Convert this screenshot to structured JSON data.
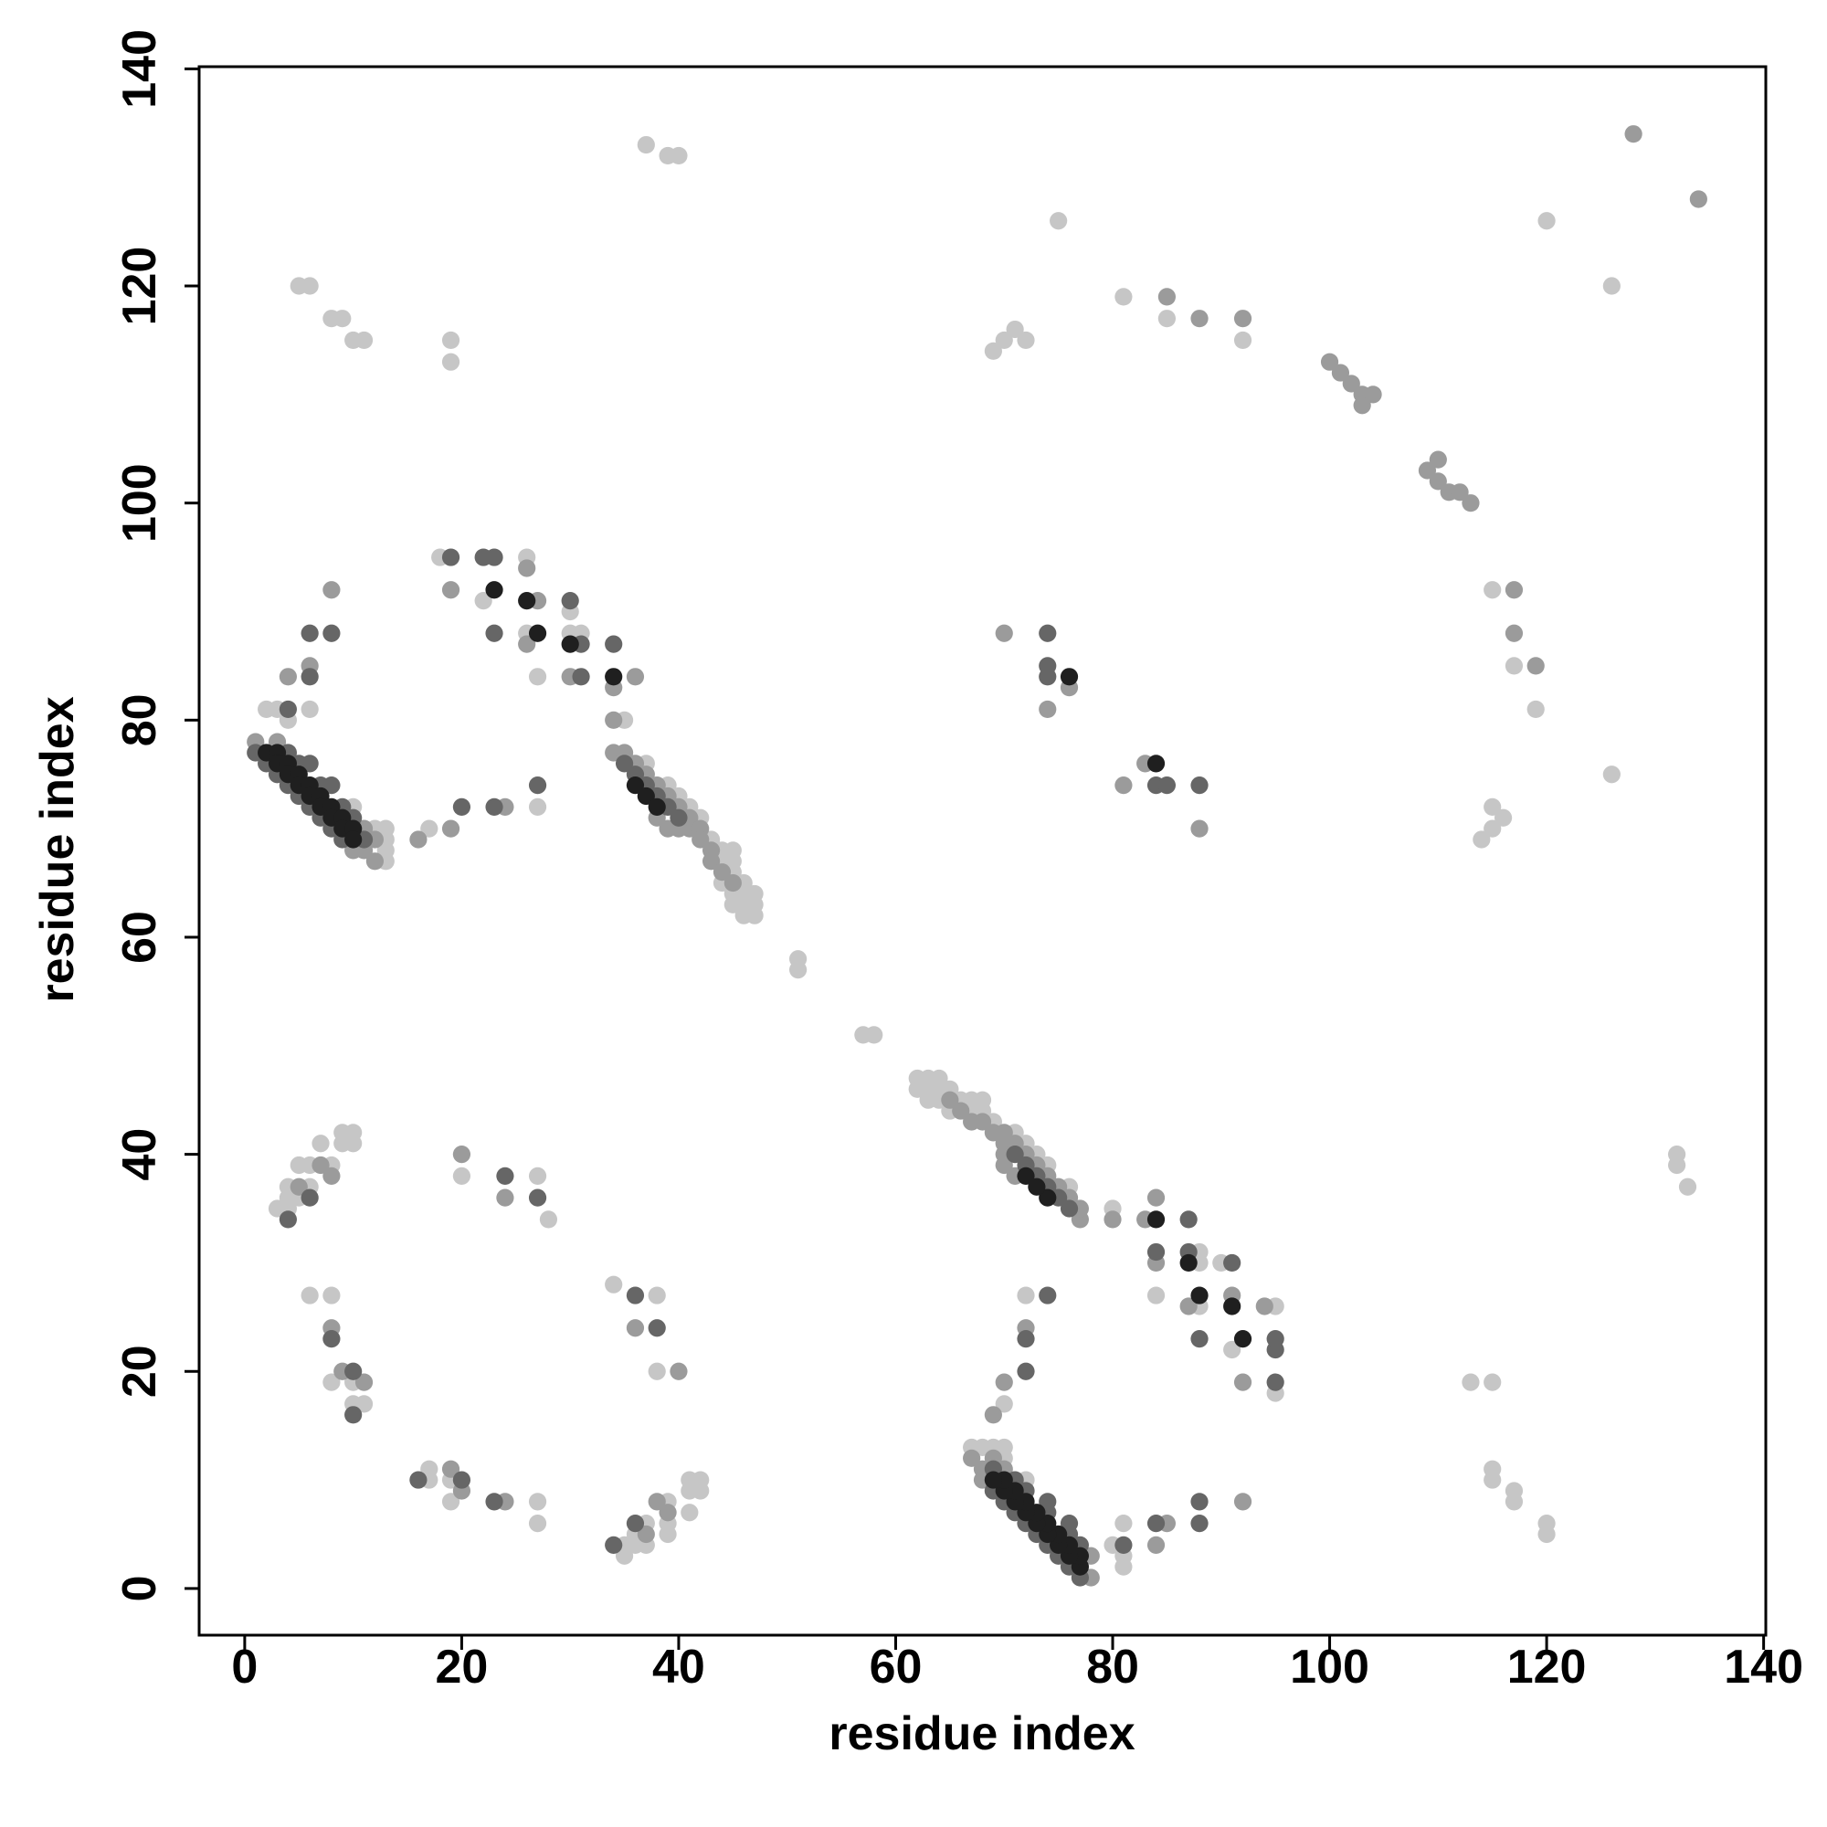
{
  "chart_data": {
    "type": "scatter",
    "xlabel": "residue index",
    "ylabel": "residue index",
    "xlim": [
      -4.2,
      140.2
    ],
    "ylim": [
      -4.3,
      140.2
    ],
    "xticks": [
      0,
      20,
      40,
      60,
      80,
      100,
      120,
      140
    ],
    "yticks": [
      0,
      20,
      40,
      60,
      80,
      100,
      120,
      140
    ],
    "series": [
      {
        "color": "#c6c6c6",
        "x": [
          2,
          3,
          4,
          6,
          18,
          22,
          26,
          26,
          27,
          27,
          30,
          30,
          31,
          35,
          17,
          19,
          19,
          5,
          6,
          8,
          9,
          10,
          11,
          37,
          39,
          40,
          69,
          70,
          71,
          72,
          75,
          81,
          85,
          92,
          120,
          51,
          51,
          44,
          44,
          45,
          45,
          45,
          45,
          45,
          46,
          46,
          46,
          46,
          47,
          47,
          47,
          42,
          43,
          44,
          39,
          40,
          41,
          37,
          12,
          13,
          13,
          13,
          13,
          10,
          3,
          4,
          4,
          4,
          5,
          5,
          6,
          6,
          7,
          8,
          9,
          9,
          10,
          10,
          20,
          27,
          28,
          6,
          8,
          8,
          10,
          10,
          11,
          81,
          81,
          80,
          81,
          95,
          91,
          95,
          88,
          84,
          72,
          90,
          88,
          88,
          80,
          70,
          115,
          113,
          120,
          120,
          117,
          117,
          115,
          115,
          133,
          132,
          132,
          114,
          115,
          116,
          115,
          126,
          119,
          117,
          115,
          126,
          58,
          57,
          68,
          67,
          68,
          67,
          66,
          64,
          63,
          65,
          64,
          63,
          62,
          64,
          63,
          62,
          71,
          69,
          65,
          74,
          73,
          72,
          76,
          70,
          70,
          69,
          68,
          67,
          72,
          35,
          37,
          36,
          35,
          39,
          36,
          39,
          37,
          41,
          39,
          42,
          41,
          42,
          41,
          38,
          38,
          34,
          27,
          27,
          19,
          19,
          17,
          17
        ],
        "values": [
          81,
          81,
          80,
          81,
          95,
          91,
          95,
          88,
          84,
          72,
          90,
          88,
          88,
          80,
          70,
          115,
          113,
          120,
          120,
          117,
          117,
          115,
          115,
          133,
          132,
          132,
          114,
          115,
          116,
          115,
          126,
          119,
          117,
          115,
          126,
          58,
          57,
          68,
          67,
          68,
          67,
          66,
          64,
          63,
          65,
          64,
          63,
          62,
          64,
          63,
          62,
          71,
          69,
          65,
          74,
          73,
          72,
          76,
          70,
          70,
          69,
          68,
          67,
          72,
          35,
          37,
          36,
          35,
          39,
          36,
          39,
          37,
          41,
          39,
          42,
          41,
          42,
          41,
          38,
          38,
          34,
          27,
          27,
          19,
          19,
          17,
          17,
          2,
          3,
          4,
          6,
          18,
          22,
          26,
          26,
          27,
          27,
          30,
          30,
          31,
          35,
          17,
          19,
          19,
          5,
          6,
          8,
          9,
          10,
          11,
          37,
          39,
          40,
          69,
          70,
          71,
          72,
          75,
          81,
          85,
          92,
          120,
          51,
          51,
          44,
          44,
          45,
          45,
          45,
          45,
          45,
          46,
          46,
          46,
          46,
          47,
          47,
          47,
          42,
          43,
          44,
          39,
          40,
          41,
          37,
          12,
          13,
          13,
          13,
          13,
          10,
          3,
          4,
          4,
          4,
          5,
          5,
          6,
          6,
          7,
          8,
          9,
          9,
          10,
          10,
          20,
          27,
          28,
          6,
          8,
          8,
          10,
          10,
          11
        ]
      },
      {
        "color": "#9b9b9b",
        "x": [
          1,
          3,
          11,
          12,
          11,
          10,
          12,
          34,
          35,
          36,
          37,
          38,
          39,
          40,
          41,
          41,
          42,
          42,
          43,
          43,
          44,
          45,
          40,
          38,
          39,
          4,
          6,
          8,
          19,
          26,
          26,
          27,
          30,
          34,
          34,
          36,
          16,
          19,
          24,
          70,
          74,
          76,
          85,
          92,
          88,
          128,
          5,
          7,
          8,
          8,
          9,
          11,
          20,
          24,
          78,
          78,
          70,
          69,
          68,
          68,
          67,
          77,
          77,
          76,
          75,
          74,
          73,
          72,
          71,
          70,
          70,
          69,
          68,
          67,
          66,
          65,
          70,
          71,
          70,
          84,
          85,
          92,
          92,
          94,
          87,
          91,
          84,
          83,
          80,
          84,
          69,
          70,
          72,
          88,
          81,
          83,
          119,
          117,
          117,
          134,
          37,
          39,
          38,
          24,
          20,
          19,
          40,
          36,
          100,
          101,
          102,
          103,
          103,
          104,
          109,
          110,
          110,
          111,
          112,
          113
        ],
        "values": [
          78,
          78,
          70,
          69,
          68,
          68,
          67,
          77,
          77,
          76,
          75,
          74,
          73,
          72,
          71,
          70,
          70,
          69,
          68,
          67,
          66,
          65,
          70,
          71,
          70,
          84,
          85,
          92,
          92,
          94,
          87,
          91,
          84,
          83,
          80,
          84,
          69,
          70,
          72,
          88,
          81,
          83,
          119,
          117,
          117,
          134,
          37,
          39,
          38,
          24,
          20,
          19,
          40,
          36,
          1,
          3,
          11,
          12,
          11,
          10,
          12,
          34,
          35,
          36,
          37,
          38,
          39,
          40,
          41,
          41,
          42,
          42,
          43,
          43,
          44,
          45,
          40,
          38,
          39,
          4,
          6,
          8,
          19,
          26,
          26,
          27,
          30,
          34,
          34,
          36,
          16,
          19,
          24,
          70,
          74,
          76,
          85,
          92,
          88,
          128,
          5,
          7,
          8,
          8,
          9,
          11,
          20,
          24,
          113,
          112,
          111,
          110,
          109,
          110,
          103,
          104,
          102,
          101,
          101,
          100
        ]
      },
      {
        "color": "#666666",
        "x": [
          1,
          2,
          3,
          4,
          5,
          6,
          7,
          8,
          9,
          11,
          4,
          5,
          6,
          7,
          8,
          9,
          10,
          4,
          6,
          6,
          8,
          19,
          22,
          23,
          23,
          30,
          31,
          31,
          34,
          35,
          36,
          37,
          38,
          39,
          40,
          74,
          74,
          88,
          20,
          23,
          27,
          27,
          24,
          8,
          10,
          10,
          4,
          6,
          77,
          76,
          75,
          74,
          73,
          72,
          71,
          70,
          69,
          69,
          77,
          76,
          76,
          74,
          74,
          72,
          71,
          81,
          84,
          88,
          88,
          95,
          95,
          95,
          88,
          91,
          87,
          84,
          87,
          76,
          75,
          74,
          73,
          72,
          71,
          84,
          85,
          74,
          72,
          72,
          74,
          36,
          38,
          23,
          20,
          16,
          34,
          36
        ],
        "values": [
          77,
          76,
          75,
          74,
          73,
          72,
          71,
          70,
          69,
          69,
          77,
          76,
          76,
          74,
          74,
          72,
          71,
          81,
          84,
          88,
          88,
          95,
          95,
          95,
          88,
          91,
          87,
          84,
          87,
          76,
          75,
          74,
          73,
          72,
          71,
          84,
          85,
          74,
          72,
          72,
          74,
          36,
          38,
          23,
          20,
          16,
          34,
          36,
          1,
          2,
          3,
          4,
          5,
          6,
          7,
          8,
          9,
          11,
          4,
          5,
          6,
          7,
          8,
          9,
          10,
          4,
          6,
          6,
          8,
          19,
          22,
          23,
          23,
          30,
          31,
          31,
          34,
          35,
          36,
          37,
          38,
          39,
          40,
          74,
          74,
          88,
          20,
          23,
          27,
          27,
          24,
          8,
          10,
          10,
          4,
          6
        ]
      },
      {
        "color": "#1f1f1f",
        "x": [
          2,
          3,
          3,
          4,
          4,
          5,
          5,
          6,
          6,
          7,
          7,
          8,
          8,
          9,
          9,
          10,
          10,
          23,
          26,
          27,
          30,
          34,
          36,
          37,
          38,
          76,
          77,
          77,
          76,
          76,
          75,
          75,
          74,
          74,
          73,
          73,
          72,
          72,
          71,
          71,
          70,
          70,
          69,
          92,
          91,
          88,
          87,
          84,
          74,
          73,
          72,
          84
        ],
        "values": [
          77,
          77,
          76,
          76,
          75,
          75,
          74,
          74,
          73,
          73,
          72,
          72,
          71,
          71,
          70,
          70,
          69,
          92,
          91,
          88,
          87,
          84,
          74,
          73,
          72,
          84,
          2,
          3,
          3,
          4,
          4,
          5,
          5,
          6,
          6,
          7,
          7,
          8,
          8,
          9,
          9,
          10,
          10,
          23,
          26,
          27,
          30,
          34,
          36,
          37,
          38,
          76
        ]
      }
    ]
  }
}
